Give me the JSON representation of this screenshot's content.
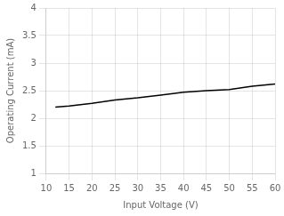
{
  "chart_data": {
    "type": "line",
    "x": [
      12,
      15,
      20,
      25,
      30,
      35,
      40,
      45,
      50,
      55,
      60
    ],
    "values": [
      2.2,
      2.22,
      2.27,
      2.33,
      2.37,
      2.42,
      2.47,
      2.5,
      2.52,
      2.58,
      2.62
    ],
    "color": "#000000",
    "xlim": [
      10,
      60
    ],
    "ylim": [
      1.0,
      4.0
    ],
    "xticks": [
      10,
      15,
      20,
      25,
      30,
      35,
      40,
      45,
      50,
      55,
      60
    ],
    "yticks": [
      1,
      1.5,
      2,
      2.5,
      3,
      3.5,
      4
    ],
    "xlabel": "Input Voltage (V)",
    "ylabel": "Operating Current (mA)",
    "grid": true
  }
}
